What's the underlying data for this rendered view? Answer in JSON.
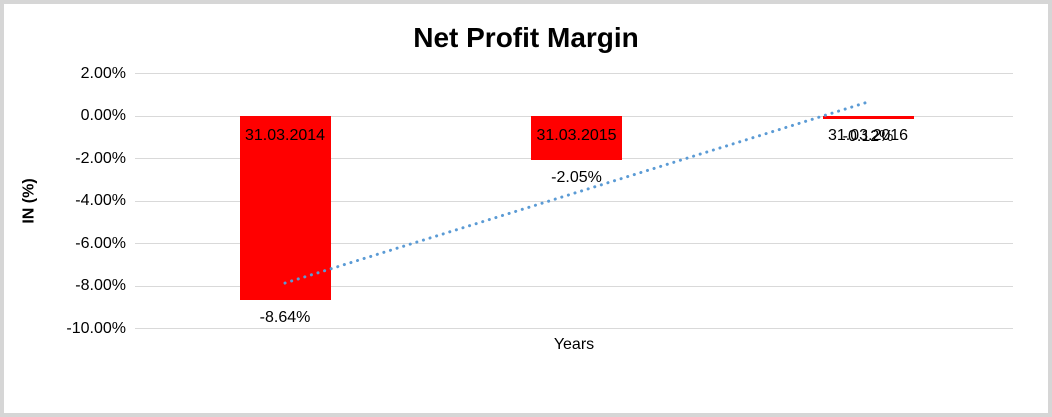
{
  "chart_data": {
    "type": "bar",
    "title": "Net Profit Margin",
    "xlabel": "Years",
    "ylabel": "IN (%)",
    "categories": [
      "31.03.2014",
      "31.03.2015",
      "31.03.2016"
    ],
    "values": [
      -8.64,
      -2.05,
      -0.12
    ],
    "data_labels": [
      "-8.64%",
      "-2.05%",
      "-0.12%"
    ],
    "ylim": [
      -10,
      2
    ],
    "y_ticks": [
      2,
      0,
      -2,
      -4,
      -6,
      -8,
      -10
    ],
    "y_tick_labels": [
      "2.00%",
      "0.00%",
      "-2.00%",
      "-4.00%",
      "-6.00%",
      "-8.00%",
      "-10.00%"
    ],
    "grid": true,
    "legend": "none",
    "bar_color": "#ff0000",
    "text_color": "#000000",
    "gridline_color": "#d9d9d9",
    "frame_color": "#d6d6d6",
    "trendline": {
      "type": "linear",
      "style": "dotted",
      "color": "#5b9bd5",
      "start": {
        "category_index": 0,
        "value": -7.86
      },
      "end": {
        "category_index": 2,
        "value": 0.66
      }
    }
  }
}
